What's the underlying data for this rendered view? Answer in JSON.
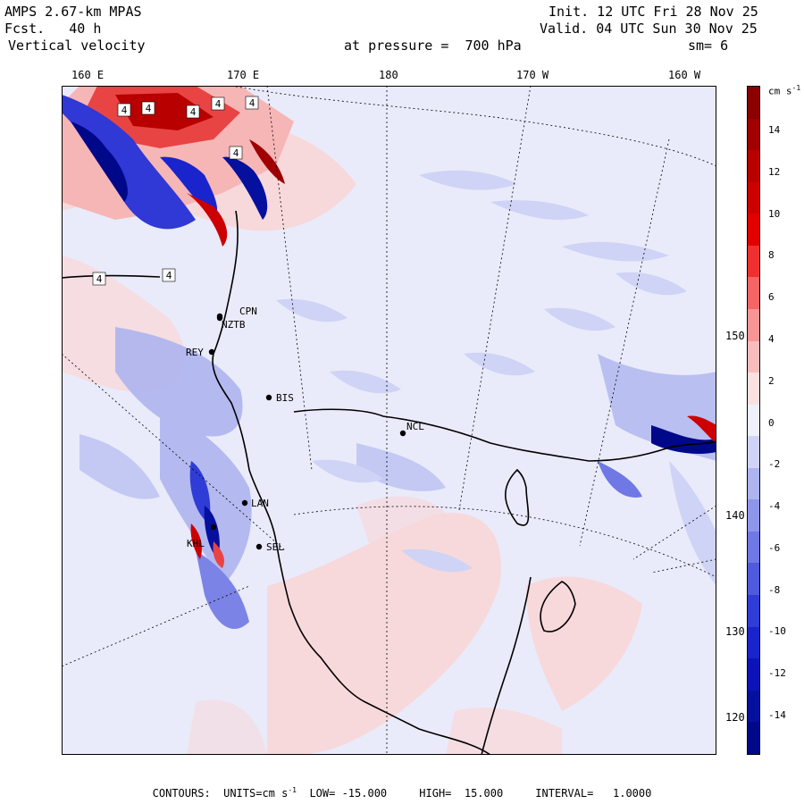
{
  "header": {
    "model": "AMPS 2.67-km MPAS",
    "forecast": "Fcst.   40 h",
    "field": "Vertical velocity",
    "init": "Init. 12 UTC Fri 28 Nov 25",
    "valid": "Valid. 04 UTC Sun 30 Nov 25",
    "level": "at pressure =  700 hPa",
    "smoothing": "sm= 6"
  },
  "top_longitude_labels": [
    "160 E",
    "170 E",
    "180",
    "170 W",
    "160 W"
  ],
  "right_longitude_labels": [
    "150 W",
    "140 W",
    "130 W",
    "120 W"
  ],
  "colorbar": {
    "units_base": "cm s",
    "units_exp": "-1",
    "tick_labels": [
      "14",
      "12",
      "10",
      "8",
      "6",
      "4",
      "2",
      "0",
      "-2",
      "-4",
      "-6",
      "-8",
      "-10",
      "-12",
      "-14"
    ],
    "colors": [
      "#8b0000",
      "#a00000",
      "#b80000",
      "#cc0000",
      "#e00000",
      "#f03030",
      "#f56565",
      "#f79595",
      "#f8bcbc",
      "#fbe0e0",
      "#eef0fb",
      "#cfd3f5",
      "#aeb4ef",
      "#8e96ea",
      "#6f78e4",
      "#4f5add",
      "#303cd6",
      "#1a24cc",
      "#0c14b8",
      "#06109f",
      "#00088a"
    ]
  },
  "stations": [
    {
      "id": "CPN"
    },
    {
      "id": "NZTB"
    },
    {
      "id": "REY"
    },
    {
      "id": "BIS"
    },
    {
      "id": "NCL"
    },
    {
      "id": "LAN"
    },
    {
      "id": "KHL"
    },
    {
      "id": "SEL"
    }
  ],
  "contour_labels": [
    "4",
    "4",
    "4",
    "4",
    "4",
    "4",
    "4",
    "4"
  ],
  "footer": {
    "contours": "CONTOURS:  UNITS=cm s",
    "units_exp": "-1",
    "rest": "  LOW= -15.000     HIGH=  15.000     INTERVAL=   1.0000"
  }
}
